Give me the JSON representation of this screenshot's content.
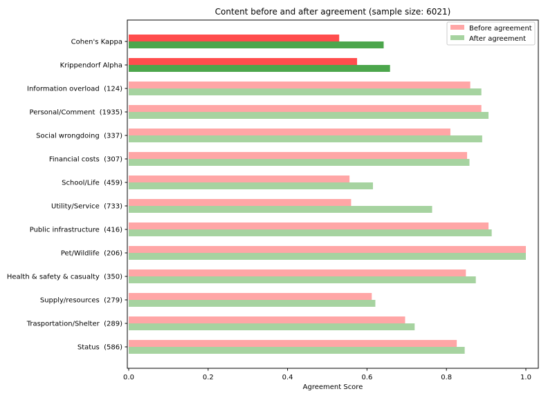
{
  "chart_data": {
    "type": "bar",
    "orientation": "horizontal",
    "title": "Content before and after agreement (sample size: 6021)",
    "xlabel": "Agreement Score",
    "ylabel": "",
    "xlim": [
      0,
      1.0
    ],
    "xticks": [
      "0.0",
      "0.2",
      "0.4",
      "0.6",
      "0.8",
      "1.0"
    ],
    "grid": false,
    "legend_position": "top-right",
    "categories": [
      "Cohen's Kappa",
      "Krippendorf Alpha",
      "Information overload  (124)",
      "Personal/Comment  (1935)",
      "Social wrongdoing  (337)",
      "Financial costs  (307)",
      "School/Life  (459)",
      "Utility/Service  (733)",
      "Public infrastructure  (416)",
      "Pet/Wildlife  (206)",
      "Health & safety & casualty  (350)",
      "Supply/resources  (279)",
      "Trasportation/Shelter  (289)",
      "Status  (586)"
    ],
    "series": [
      {
        "name": "Before agreement",
        "color": "#ffa6a6",
        "highlight_color": "#ff4d4d",
        "values": [
          0.53,
          0.575,
          0.86,
          0.888,
          0.81,
          0.852,
          0.556,
          0.56,
          0.906,
          1.0,
          0.849,
          0.612,
          0.696,
          0.826
        ]
      },
      {
        "name": "After agreement",
        "color": "#a6d3a0",
        "highlight_color": "#4ca64c",
        "values": [
          0.642,
          0.658,
          0.888,
          0.906,
          0.89,
          0.858,
          0.615,
          0.764,
          0.914,
          1.0,
          0.874,
          0.621,
          0.72,
          0.846
        ]
      }
    ],
    "highlighted_categories": [
      0,
      1
    ]
  }
}
